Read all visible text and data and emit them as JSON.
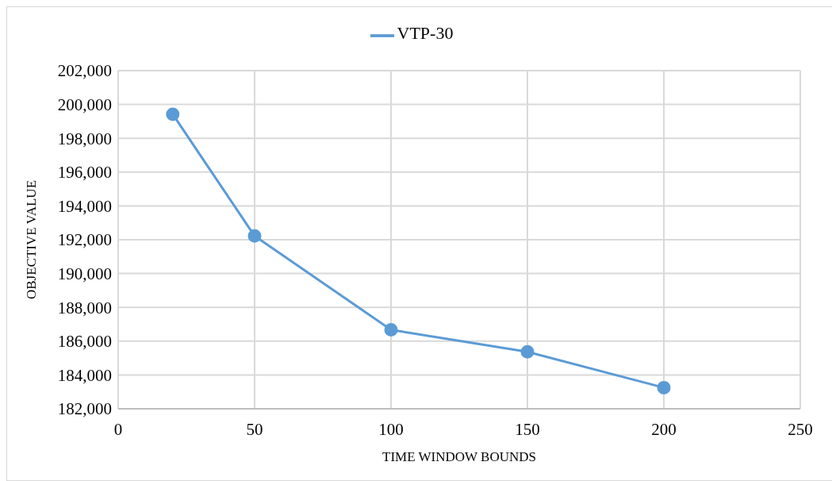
{
  "chart_data": {
    "type": "line",
    "xlabel": "TIME WINDOW BOUNDS",
    "ylabel": "OBJECTIVE VALUE",
    "x": [
      20,
      50,
      100,
      150,
      200
    ],
    "series": [
      {
        "name": "VTP-30",
        "color": "#5b9bd5",
        "values": [
          199420,
          192220,
          186670,
          185370,
          183250
        ]
      }
    ],
    "xlim": [
      0,
      250
    ],
    "xticks": [
      0,
      50,
      100,
      150,
      200,
      250
    ],
    "ylim": [
      182000,
      202000
    ],
    "yticks": [
      {
        "value": 182000,
        "label": "182,000"
      },
      {
        "value": 184000,
        "label": "184,000"
      },
      {
        "value": 186000,
        "label": "186,000"
      },
      {
        "value": 188000,
        "label": "188,000"
      },
      {
        "value": 190000,
        "label": "190,000"
      },
      {
        "value": 192000,
        "label": "192,000"
      },
      {
        "value": 194000,
        "label": "194,000"
      },
      {
        "value": 196000,
        "label": "196,000"
      },
      {
        "value": 198000,
        "label": "198,000"
      },
      {
        "value": 200000,
        "label": "200,000"
      },
      {
        "value": 202000,
        "label": "202,000"
      }
    ],
    "grid": true,
    "legend": "top",
    "marker": "circle",
    "line_style": "solid"
  }
}
